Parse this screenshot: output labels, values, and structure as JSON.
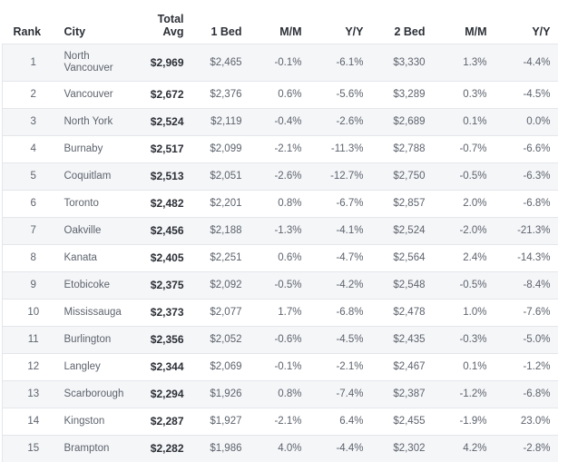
{
  "table": {
    "columns": [
      "Rank",
      "City",
      "Total Avg",
      "1 Bed",
      "M/M",
      "Y/Y",
      "2 Bed",
      "M/M",
      "Y/Y"
    ],
    "rows": [
      [
        "1",
        "North Vancouver",
        "$2,969",
        "$2,465",
        "-0.1%",
        "-6.1%",
        "$3,330",
        "1.3%",
        "-4.4%"
      ],
      [
        "2",
        "Vancouver",
        "$2,672",
        "$2,376",
        "0.6%",
        "-5.6%",
        "$3,289",
        "0.3%",
        "-4.5%"
      ],
      [
        "3",
        "North York",
        "$2,524",
        "$2,119",
        "-0.4%",
        "-2.6%",
        "$2,689",
        "0.1%",
        "0.0%"
      ],
      [
        "4",
        "Burnaby",
        "$2,517",
        "$2,099",
        "-2.1%",
        "-11.3%",
        "$2,788",
        "-0.7%",
        "-6.6%"
      ],
      [
        "5",
        "Coquitlam",
        "$2,513",
        "$2,051",
        "-2.6%",
        "-12.7%",
        "$2,750",
        "-0.5%",
        "-6.3%"
      ],
      [
        "6",
        "Toronto",
        "$2,482",
        "$2,201",
        "0.8%",
        "-6.7%",
        "$2,857",
        "2.0%",
        "-6.8%"
      ],
      [
        "7",
        "Oakville",
        "$2,456",
        "$2,188",
        "-1.3%",
        "-4.1%",
        "$2,524",
        "-2.0%",
        "-21.3%"
      ],
      [
        "8",
        "Kanata",
        "$2,405",
        "$2,251",
        "0.6%",
        "-4.7%",
        "$2,564",
        "2.4%",
        "-14.3%"
      ],
      [
        "9",
        "Etobicoke",
        "$2,375",
        "$2,092",
        "-0.5%",
        "-4.2%",
        "$2,548",
        "-0.5%",
        "-8.4%"
      ],
      [
        "10",
        "Mississauga",
        "$2,373",
        "$2,077",
        "1.7%",
        "-6.8%",
        "$2,478",
        "1.0%",
        "-7.6%"
      ],
      [
        "11",
        "Burlington",
        "$2,356",
        "$2,052",
        "-0.6%",
        "-4.5%",
        "$2,435",
        "-0.3%",
        "-5.0%"
      ],
      [
        "12",
        "Langley",
        "$2,344",
        "$2,069",
        "-0.1%",
        "-2.1%",
        "$2,467",
        "0.1%",
        "-1.2%"
      ],
      [
        "13",
        "Scarborough",
        "$2,294",
        "$1,926",
        "0.8%",
        "-7.4%",
        "$2,387",
        "-1.2%",
        "-6.8%"
      ],
      [
        "14",
        "Kingston",
        "$2,287",
        "$1,927",
        "-2.1%",
        "6.4%",
        "$2,455",
        "-1.9%",
        "23.0%"
      ],
      [
        "15",
        "Brampton",
        "$2,282",
        "$1,986",
        "4.0%",
        "-4.4%",
        "$2,302",
        "4.2%",
        "-2.8%"
      ]
    ]
  }
}
